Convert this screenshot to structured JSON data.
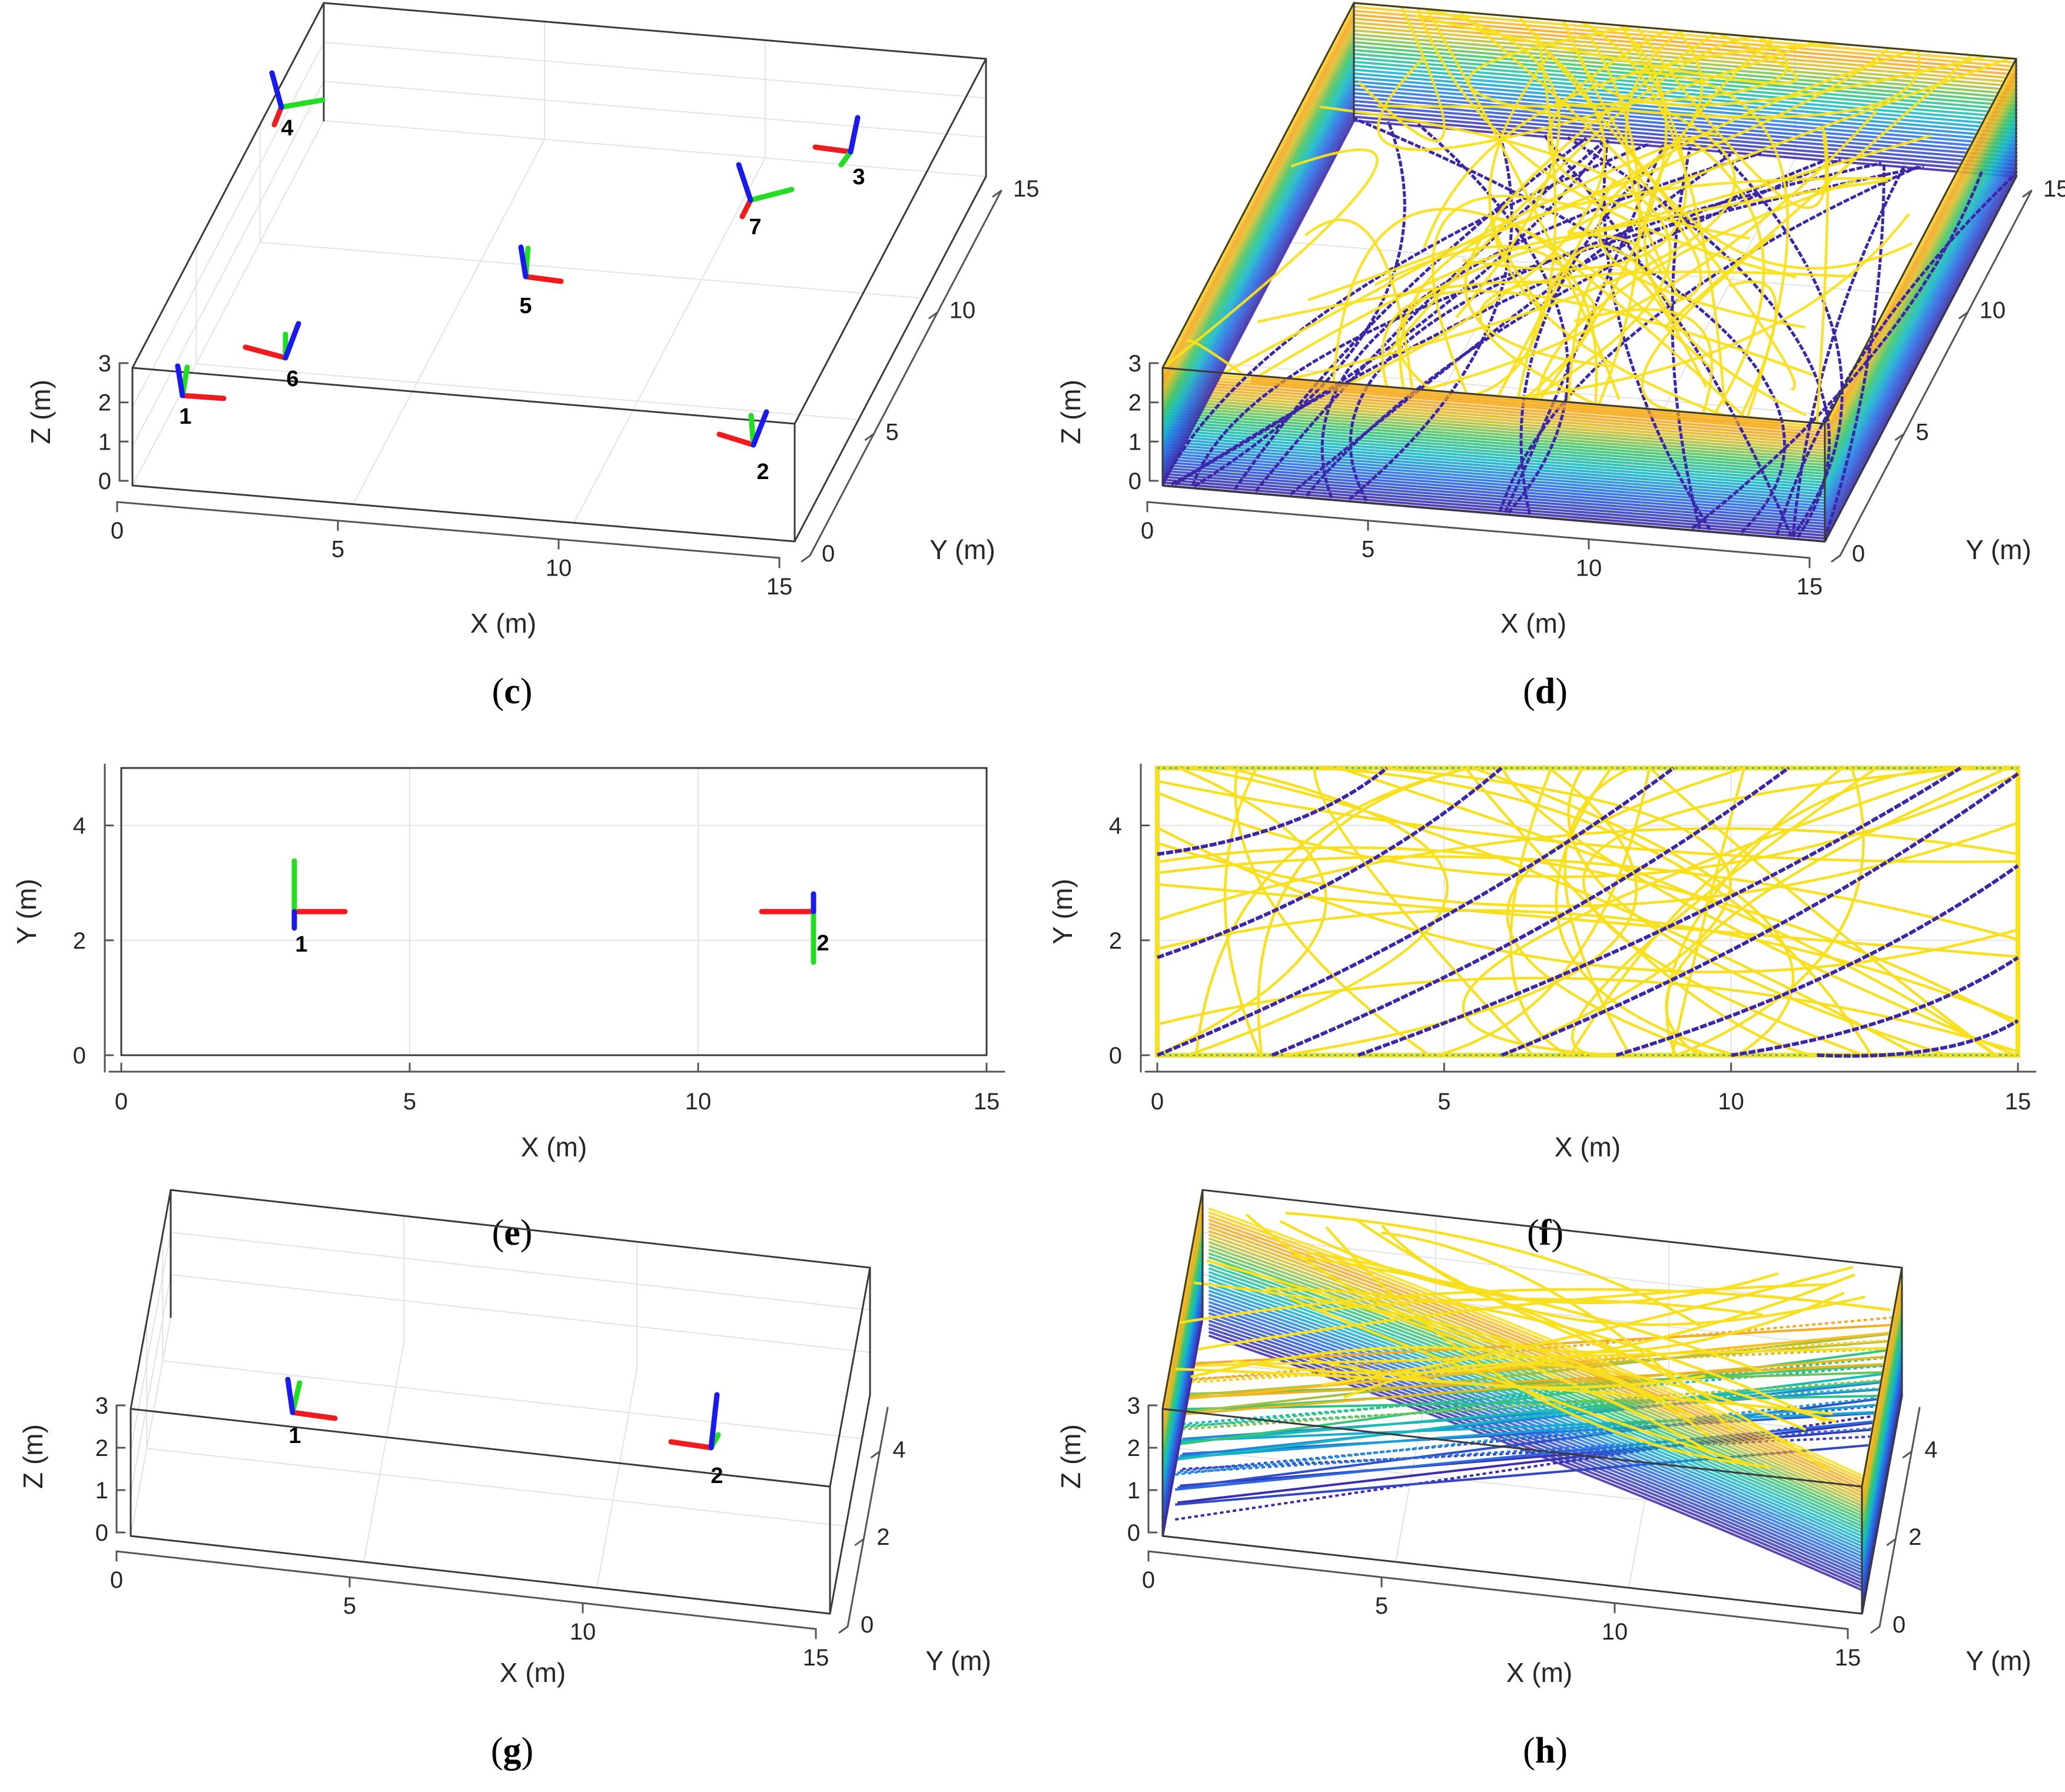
{
  "chart_data": [
    {
      "id": "c",
      "caption": "c",
      "type": "scatter",
      "view": "3d",
      "title": "",
      "xlabel": "X (m)",
      "ylabel": "Y (m)",
      "zlabel": "Z (m)",
      "xlim": [
        0,
        15
      ],
      "ylim": [
        0,
        15
      ],
      "zlim": [
        0,
        3
      ],
      "xticks": [
        "0",
        "5",
        "10",
        "15"
      ],
      "yticks": [
        "0",
        "5",
        "10",
        "15"
      ],
      "zticks": [
        "0",
        "1",
        "2",
        "3"
      ],
      "poses": [
        {
          "label": "1",
          "x": 1,
          "y": 1,
          "z": 2.3
        },
        {
          "label": "2",
          "x": 14,
          "y": 1,
          "z": 1.2
        },
        {
          "label": "3",
          "x": 14.5,
          "y": 14.5,
          "z": 2.7
        },
        {
          "label": "4",
          "x": 0.5,
          "y": 14.5,
          "z": 2.8
        },
        {
          "label": "5",
          "x": 7.5,
          "y": 7.5,
          "z": 2
        },
        {
          "label": "6",
          "x": 2.5,
          "y": 4,
          "z": 2
        },
        {
          "label": "7",
          "x": 13,
          "y": 12,
          "z": 2
        }
      ]
    },
    {
      "id": "d",
      "caption": "d",
      "type": "line",
      "view": "3d",
      "title": "",
      "xlabel": "X (m)",
      "ylabel": "Y (m)",
      "zlabel": "Z (m)",
      "xlim": [
        0,
        15
      ],
      "ylim": [
        0,
        15
      ],
      "zlim": [
        0,
        3
      ],
      "xticks": [
        "0",
        "5",
        "10",
        "15"
      ],
      "yticks": [
        "0",
        "5",
        "10",
        "15"
      ],
      "zticks": [
        "0",
        "1",
        "2",
        "3"
      ],
      "series_note": "trajectories colored by height (parula colormap)"
    },
    {
      "id": "e",
      "caption": "e",
      "type": "scatter",
      "view": "2d",
      "title": "",
      "xlabel": "X (m)",
      "ylabel": "Y (m)",
      "xlim": [
        0,
        15
      ],
      "ylim": [
        0,
        5
      ],
      "xticks": [
        "0",
        "5",
        "10",
        "15"
      ],
      "yticks": [
        "0",
        "2",
        "4"
      ],
      "poses": [
        {
          "label": "1",
          "x": 3,
          "y": 2.5
        },
        {
          "label": "2",
          "x": 12,
          "y": 2.5
        }
      ]
    },
    {
      "id": "f",
      "caption": "f",
      "type": "line",
      "view": "2d",
      "title": "",
      "xlabel": "X (m)",
      "ylabel": "Y (m)",
      "xlim": [
        0,
        15
      ],
      "ylim": [
        0,
        5
      ],
      "xticks": [
        "0",
        "5",
        "10",
        "15"
      ],
      "yticks": [
        "0",
        "2",
        "4"
      ],
      "series_note": "trajectories colored by height (parula colormap)"
    },
    {
      "id": "g",
      "caption": "g",
      "type": "scatter",
      "view": "3d",
      "title": "",
      "xlabel": "X (m)",
      "ylabel": "Y (m)",
      "zlabel": "Z (m)",
      "xlim": [
        0,
        15
      ],
      "ylim": [
        0,
        5
      ],
      "zlim": [
        0,
        3
      ],
      "xticks": [
        "0",
        "5",
        "10",
        "15"
      ],
      "yticks": [
        "0",
        "2",
        "4"
      ],
      "zticks": [
        "0",
        "1",
        "2",
        "3"
      ],
      "poses": [
        {
          "label": "1",
          "x": 3,
          "y": 2.5,
          "z": 3
        },
        {
          "label": "2",
          "x": 12,
          "y": 2.5,
          "z": 2
        }
      ]
    },
    {
      "id": "h",
      "caption": "h",
      "type": "line",
      "view": "3d",
      "title": "",
      "xlabel": "X (m)",
      "ylabel": "Y (m)",
      "zlabel": "Z (m)",
      "xlim": [
        0,
        15
      ],
      "ylim": [
        0,
        5
      ],
      "zlim": [
        0,
        3
      ],
      "xticks": [
        "0",
        "5",
        "10",
        "15"
      ],
      "yticks": [
        "0",
        "2",
        "4"
      ],
      "zticks": [
        "0",
        "1",
        "2",
        "3"
      ],
      "series_note": "trajectories colored by height (parula colormap)"
    }
  ],
  "colors": {
    "axis_x": "#ee1c1c",
    "axis_y": "#22dd22",
    "axis_z": "#1a1aee",
    "low": "#3d26a8",
    "mid": "#13b9c9",
    "midhigh": "#3bc66a",
    "high": "#f9e01e",
    "orange": "#f5a623",
    "box": "#3a3a3a",
    "grid": "#e3e3e3"
  }
}
